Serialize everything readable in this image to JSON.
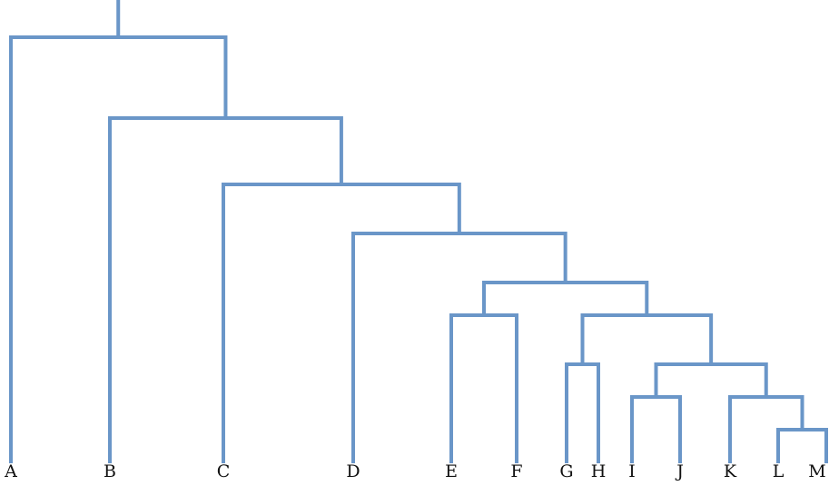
{
  "diagram": {
    "type": "dendrogram",
    "line_color": "#6a96c8",
    "label_color": "#111111",
    "leaves": [
      "A",
      "B",
      "C",
      "D",
      "E",
      "F",
      "G",
      "H",
      "I",
      "J",
      "K",
      "L",
      "M"
    ],
    "merges": [
      {
        "id": "n_LM",
        "children": [
          "L",
          "M"
        ],
        "rank": 1
      },
      {
        "id": "n_KLM",
        "children": [
          "K",
          "n_LM"
        ],
        "rank": 2
      },
      {
        "id": "n_IJ",
        "children": [
          "I",
          "J"
        ],
        "rank": 2
      },
      {
        "id": "n_GH",
        "children": [
          "G",
          "H"
        ],
        "rank": 3
      },
      {
        "id": "n_IM",
        "children": [
          "n_IJ",
          "n_KLM"
        ],
        "rank": 3
      },
      {
        "id": "n_EF",
        "children": [
          "E",
          "F"
        ],
        "rank": 4
      },
      {
        "id": "n_GM",
        "children": [
          "n_GH",
          "n_IM"
        ],
        "rank": 4
      },
      {
        "id": "n_EM",
        "children": [
          "n_EF",
          "n_GM"
        ],
        "rank": 5
      },
      {
        "id": "n_DM",
        "children": [
          "D",
          "n_EM"
        ],
        "rank": 6
      },
      {
        "id": "n_CM",
        "children": [
          "C",
          "n_DM"
        ],
        "rank": 7
      },
      {
        "id": "n_BM",
        "children": [
          "B",
          "n_CM"
        ],
        "rank": 8
      },
      {
        "id": "n_AM",
        "children": [
          "A",
          "n_BM"
        ],
        "rank": 9
      }
    ],
    "root": "n_AM"
  }
}
